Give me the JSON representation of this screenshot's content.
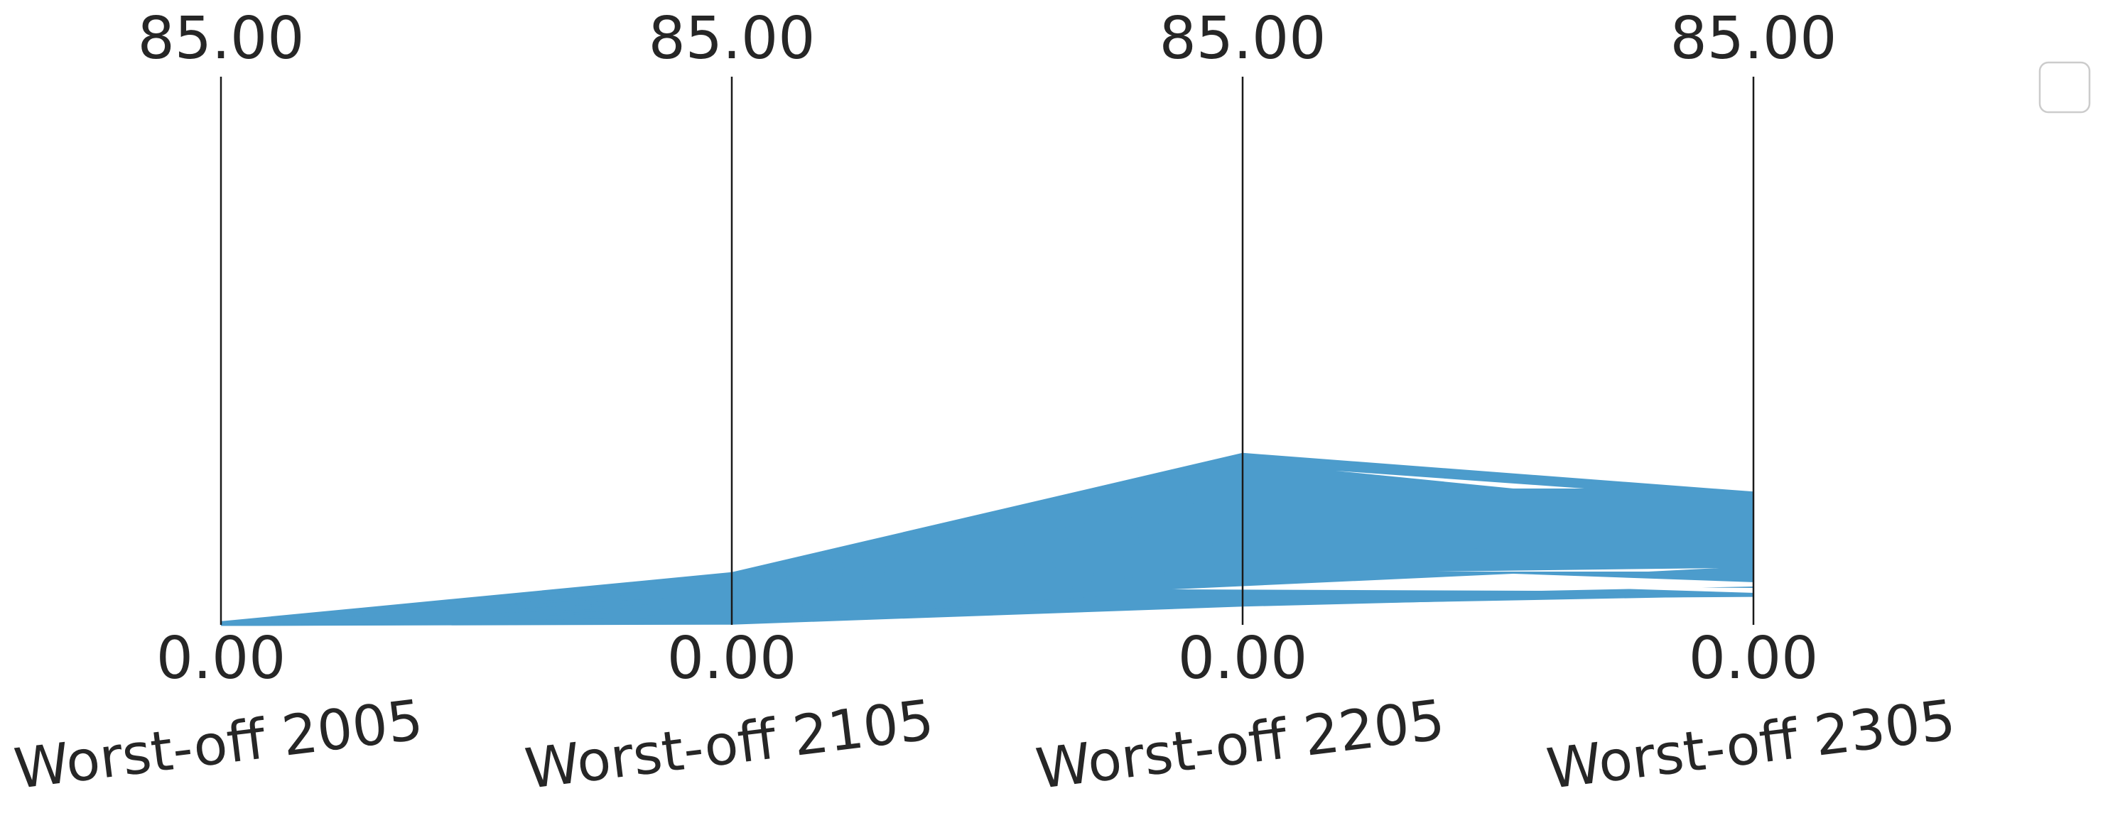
{
  "chart_data": {
    "type": "parallel-coordinates",
    "title": "",
    "axes": [
      {
        "name": "Worst-off 2005",
        "min": 0,
        "max": 85,
        "min_label": "0.00",
        "max_label": "85.00"
      },
      {
        "name": "Worst-off 2105",
        "min": 0,
        "max": 85,
        "min_label": "0.00",
        "max_label": "85.00"
      },
      {
        "name": "Worst-off 2205",
        "min": 0,
        "max": 85,
        "min_label": "0.00",
        "max_label": "85.00"
      },
      {
        "name": "Worst-off 2305",
        "min": 0,
        "max": 85,
        "min_label": "0.00",
        "max_label": "85.00"
      }
    ],
    "series_color": "#4c9ccc",
    "lines": [
      {
        "values": [
          0.4,
          8.0,
          26.5,
          20.5
        ]
      },
      {
        "values": [
          0.3,
          7.5,
          25.0,
          20.0
        ]
      },
      {
        "values": [
          0.2,
          7.0,
          24.0,
          19.5
        ]
      },
      {
        "values": [
          0.3,
          6.0,
          22.0,
          19.0
        ]
      },
      {
        "values": [
          0.2,
          5.5,
          20.0,
          18.0
        ]
      },
      {
        "values": [
          0.1,
          5.0,
          18.0,
          17.0
        ]
      },
      {
        "values": [
          0.2,
          4.5,
          16.0,
          15.0
        ]
      },
      {
        "values": [
          0.1,
          4.0,
          15.0,
          8.5
        ]
      },
      {
        "values": [
          0.2,
          3.5,
          13.0,
          10.0
        ]
      },
      {
        "values": [
          0.1,
          3.0,
          12.0,
          9.0
        ]
      },
      {
        "values": [
          0.1,
          2.5,
          10.0,
          8.0
        ]
      },
      {
        "values": [
          0.0,
          2.0,
          9.0,
          7.0
        ]
      },
      {
        "values": [
          0.1,
          1.5,
          8.0,
          6.5
        ]
      },
      {
        "values": [
          0.0,
          1.0,
          6.0,
          6.0
        ]
      },
      {
        "values": [
          0.1,
          0.8,
          5.5,
          5.5
        ]
      },
      {
        "values": [
          0.0,
          0.5,
          5.0,
          5.0
        ]
      },
      {
        "values": [
          0.0,
          0.3,
          4.0,
          4.5
        ]
      },
      {
        "values": [
          0.0,
          0.2,
          3.0,
          5.0
        ]
      }
    ],
    "legend": {
      "position": "top-right",
      "entries": []
    },
    "grid": false
  }
}
